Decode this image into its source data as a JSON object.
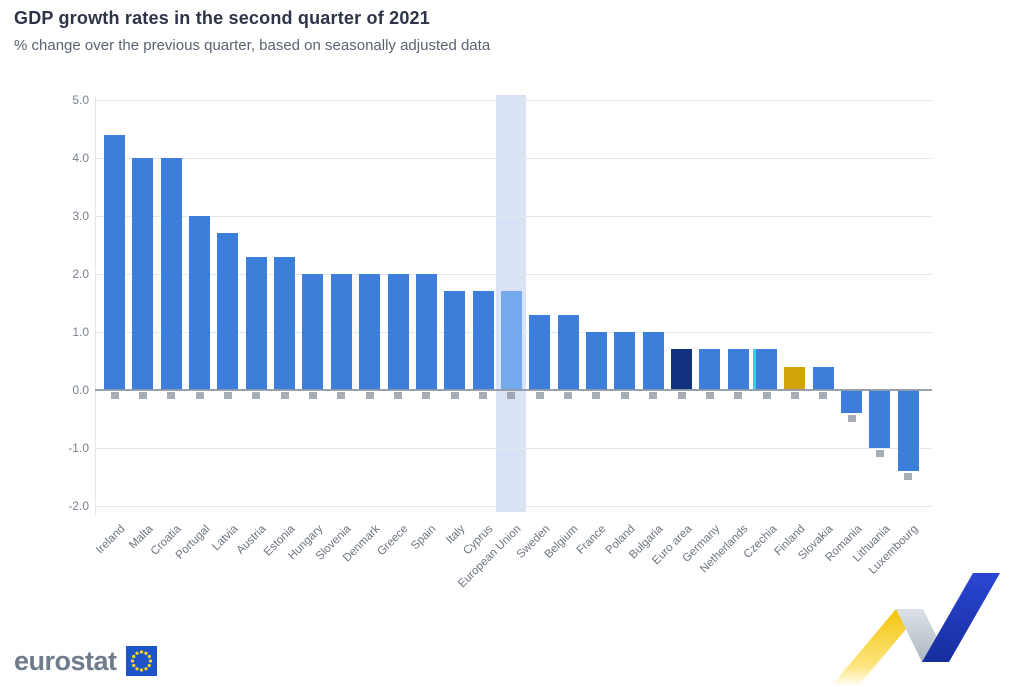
{
  "chart_data": {
    "type": "bar",
    "title": "GDP growth rates in the second quarter of 2021",
    "subtitle": "% change over the previous quarter, based on seasonally adjusted data",
    "unit": "%",
    "xlabel": "",
    "ylabel": "",
    "grid": true,
    "legend": "none",
    "ylim": [
      -2.4,
      5.1
    ],
    "yticks": [
      {
        "value": 5,
        "label": "5.0"
      },
      {
        "value": 4,
        "label": "4.0"
      },
      {
        "value": 3,
        "label": "3.0"
      },
      {
        "value": 2,
        "label": "2.0"
      },
      {
        "value": 1,
        "label": "1.0"
      },
      {
        "value": 0,
        "label": "0.0"
      },
      {
        "value": -1,
        "label": "-1.0"
      },
      {
        "value": -2,
        "label": "-2.0"
      }
    ],
    "categories": [
      "Ireland",
      "Malta",
      "Croatia",
      "Portugal",
      "Latvia",
      "Austria",
      "Estonia",
      "Hungary",
      "Slovenia",
      "Denmark",
      "Greece",
      "Spain",
      "Italy",
      "Cyprus",
      "European Union",
      "Sweden",
      "Belgium",
      "France",
      "Poland",
      "Bulgaria",
      "Euro area",
      "Germany",
      "Netherlands",
      "Czechia",
      "Finland",
      "Slovakia",
      "Romania",
      "Lithuania",
      "Luxembourg"
    ],
    "values": [
      4.4,
      4.0,
      4.0,
      3.0,
      2.7,
      2.3,
      2.3,
      2.0,
      2.0,
      2.0,
      2.0,
      2.0,
      1.7,
      1.7,
      1.7,
      1.3,
      1.3,
      1.0,
      1.0,
      1.0,
      0.7,
      0.7,
      0.7,
      0.7,
      0.4,
      0.4,
      -0.4,
      -1.0,
      -1.4
    ],
    "highlight_band_index": 14,
    "cyan_edge_index": 23,
    "bar_roles": {
      "14": "eu-aggregate",
      "20": "euro-area",
      "24": "accent"
    },
    "colors": {
      "default": "#3d7edb",
      "eu-aggregate": "#74a9ec",
      "euro-area": "#12317f",
      "accent": "#d2a408",
      "cyan": "#41c7e8",
      "band": "#d9e3f5",
      "gridline": "#e3e7ee",
      "zero_line": "#9099a4"
    }
  },
  "footer": {
    "brand": "eurostat"
  }
}
